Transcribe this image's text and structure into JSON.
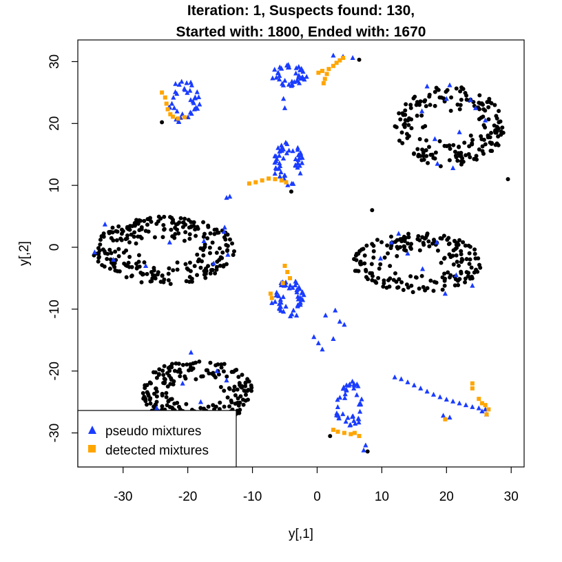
{
  "chart_data": {
    "type": "scatter",
    "title": "Iteration: 1, Suspects found: 130,",
    "subtitle": "Started with: 1800, Ended with: 1670",
    "xlabel": "y[,1]",
    "ylabel": "y[,2]",
    "xlim": [
      -37,
      32
    ],
    "ylim": [
      -35.5,
      33.5
    ],
    "xticks": [
      -30,
      -20,
      -10,
      0,
      10,
      20,
      30
    ],
    "yticks": [
      -30,
      -20,
      -10,
      0,
      10,
      20,
      30
    ],
    "legend_position": "bottom-left",
    "grid": false,
    "series": [
      {
        "name": "",
        "marker": "circle",
        "color": "#000000",
        "clusters": [
          {
            "cx": -23.5,
            "cy": -0.5,
            "rx": 11,
            "ry": 5.5,
            "n": 260
          },
          {
            "cx": 20.5,
            "cy": 19.5,
            "rx": 8.5,
            "ry": 6.5,
            "n": 190
          },
          {
            "cx": 15.5,
            "cy": -2.5,
            "rx": 10,
            "ry": 4.8,
            "n": 200
          },
          {
            "cx": -18.5,
            "cy": -23.5,
            "rx": 8.5,
            "ry": 5.5,
            "n": 230
          }
        ],
        "points": [
          [
            -24,
            20.2
          ],
          [
            -4,
            9
          ],
          [
            2,
            -30.5
          ],
          [
            7.8,
            -33
          ],
          [
            6.5,
            30.3
          ],
          [
            29.5,
            11
          ],
          [
            -34.5,
            -1.3
          ],
          [
            8.5,
            6
          ]
        ]
      },
      {
        "name": "pseudo mixtures",
        "marker": "triangle",
        "color": "#1a3cff",
        "clusters": [
          {
            "cx": -20.5,
            "cy": 23.5,
            "rx": 2.5,
            "ry": 3.5,
            "n": 38
          },
          {
            "cx": -4.2,
            "cy": 27.8,
            "rx": 2.8,
            "ry": 1.8,
            "n": 40
          },
          {
            "cx": -4.5,
            "cy": 13.5,
            "rx": 2.3,
            "ry": 3.5,
            "n": 52
          },
          {
            "cx": -4.2,
            "cy": -8.2,
            "rx": 2.2,
            "ry": 3.2,
            "n": 48
          },
          {
            "cx": 5,
            "cy": -25.5,
            "rx": 2.2,
            "ry": 4,
            "n": 42
          }
        ],
        "points": [
          [
            2.5,
            31
          ],
          [
            4,
            30.8
          ],
          [
            5.5,
            30.6
          ],
          [
            -5,
            22.5
          ],
          [
            -5.2,
            24
          ],
          [
            -14,
            8
          ],
          [
            -13.5,
            8.2
          ],
          [
            -7,
            -9
          ],
          [
            -6.5,
            -8.8
          ],
          [
            -0.5,
            -14.5
          ],
          [
            0.2,
            -15.5
          ],
          [
            0.8,
            -16.5
          ],
          [
            1.3,
            -11
          ],
          [
            2.8,
            -10.2
          ],
          [
            3.5,
            -12
          ],
          [
            4.2,
            -12.5
          ],
          [
            2.5,
            -14.8
          ],
          [
            -22.8,
            0.8
          ],
          [
            -14.3,
            3.2
          ],
          [
            -13.8,
            -1.2
          ],
          [
            -14.4,
            2.5
          ],
          [
            -17.5,
            1
          ],
          [
            -16,
            -2.6
          ],
          [
            20.5,
            26.2
          ],
          [
            17,
            26
          ],
          [
            20,
            24
          ],
          [
            26,
            20.5
          ],
          [
            18.2,
            17.5
          ],
          [
            22,
            18.6
          ],
          [
            16.2,
            22
          ],
          [
            24.5,
            22.5
          ],
          [
            23.7,
            23.8
          ],
          [
            21,
            12.8
          ],
          [
            18.6,
            13.5
          ],
          [
            11.5,
            0.8
          ],
          [
            12.6,
            2.2
          ],
          [
            14,
            -1
          ],
          [
            9.8,
            -1.8
          ],
          [
            18.5,
            0.8
          ],
          [
            21.5,
            -4.5
          ],
          [
            24,
            -6.2
          ],
          [
            19.8,
            -7.5
          ],
          [
            16.3,
            -3.5
          ],
          [
            -34.4,
            -0.8
          ],
          [
            -31.5,
            -2
          ],
          [
            -32.8,
            3.7
          ],
          [
            -26.5,
            -3
          ],
          [
            -19.5,
            -17
          ],
          [
            -15.5,
            -20
          ],
          [
            -20.8,
            -22
          ],
          [
            -14,
            -21.5
          ],
          [
            -18,
            -25
          ],
          [
            -24.8,
            -26
          ],
          [
            -30.5,
            -28
          ],
          [
            -13,
            -28
          ],
          [
            7.5,
            -32
          ],
          [
            7.2,
            -32.8
          ],
          [
            12,
            -21
          ],
          [
            13,
            -21.3
          ],
          [
            14,
            -21.8
          ],
          [
            15,
            -22.3
          ],
          [
            16,
            -22.8
          ],
          [
            17,
            -23.3
          ],
          [
            18,
            -23.8
          ],
          [
            19,
            -24.2
          ],
          [
            20,
            -24.6
          ],
          [
            21,
            -24.9
          ],
          [
            22,
            -25.2
          ],
          [
            23,
            -25.5
          ],
          [
            24,
            -25.8
          ],
          [
            25,
            -26
          ],
          [
            26,
            -26.2
          ],
          [
            20.5,
            -27.5
          ],
          [
            19.5,
            -27.2
          ],
          [
            25.5,
            -26.5
          ],
          [
            26.2,
            -27
          ]
        ]
      },
      {
        "name": "detected mixtures",
        "marker": "square",
        "color": "#ffa500",
        "points": [
          [
            -24,
            25
          ],
          [
            -23.5,
            24.2
          ],
          [
            -23.3,
            23.2
          ],
          [
            -23.1,
            22.3
          ],
          [
            -22.7,
            21.5
          ],
          [
            -22.3,
            21.1
          ],
          [
            -21.5,
            20.8
          ],
          [
            -20.5,
            21
          ],
          [
            -10.5,
            10.3
          ],
          [
            -9.5,
            10.5
          ],
          [
            -8.5,
            10.8
          ],
          [
            -7.5,
            11.1
          ],
          [
            -6.5,
            11
          ],
          [
            -5.5,
            10.8
          ],
          [
            -4.8,
            10.5
          ],
          [
            0.2,
            28.2
          ],
          [
            0.8,
            28.5
          ],
          [
            1.5,
            28
          ],
          [
            1.2,
            27.2
          ],
          [
            1,
            26.5
          ],
          [
            1.8,
            28.8
          ],
          [
            2.5,
            29.3
          ],
          [
            3,
            29.8
          ],
          [
            3.5,
            30.2
          ],
          [
            4,
            30.6
          ],
          [
            -5,
            -3
          ],
          [
            -4.6,
            -4
          ],
          [
            -4.2,
            -5
          ],
          [
            -5.3,
            -5.8
          ],
          [
            -7.2,
            -7.5
          ],
          [
            -7,
            -8.2
          ],
          [
            2.5,
            -29.5
          ],
          [
            3.2,
            -29.8
          ],
          [
            4.2,
            -30
          ],
          [
            5.2,
            -30.2
          ],
          [
            5.8,
            -30
          ],
          [
            6.5,
            -30.5
          ],
          [
            24,
            -22
          ],
          [
            24,
            -22.8
          ],
          [
            25,
            -24.5
          ],
          [
            25.5,
            -25.2
          ],
          [
            26,
            -25.5
          ],
          [
            26.5,
            -26.2
          ],
          [
            26.2,
            -27
          ],
          [
            19.8,
            -27.8
          ]
        ]
      }
    ]
  }
}
